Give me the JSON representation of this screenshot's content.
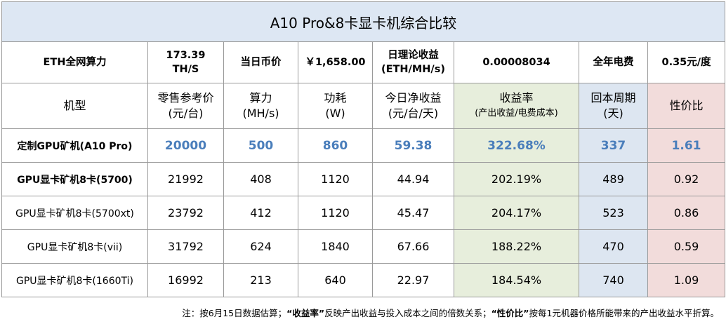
{
  "title": "A10 Pro&8卡显卡机综合比较",
  "stats": {
    "hashrate_label": "ETH全网算力",
    "hashrate_value": "173.39 TH/S",
    "price_label": "当日币价",
    "price_value": "￥1,658.00",
    "income_label": "日理论收益 (ETH/MH/s)",
    "income_value": "0.00008034",
    "electricity_label": "全年电费",
    "electricity_value": "0.35元/度"
  },
  "headers": {
    "model": "机型",
    "price": "零售参考价",
    "price_unit": "(元/台)",
    "hash": "算力",
    "hash_unit": "(MH/s)",
    "power": "功耗",
    "power_unit": "(W)",
    "net": "今日净收益",
    "net_unit": "(元/台/天)",
    "yield": "收益率",
    "yield_unit": "(产出收益/电费成本)",
    "payback": "回本周期",
    "payback_unit": "(天)",
    "value": "性价比"
  },
  "rows": [
    {
      "model": "定制GPU矿机(A10 Pro)",
      "price": "20000",
      "hash": "500",
      "power": "860",
      "net": "59.38",
      "yield": "322.68%",
      "payback": "337",
      "value": "1.61"
    },
    {
      "model": "GPU显卡矿机8卡(5700)",
      "price": "21992",
      "hash": "408",
      "power": "1120",
      "net": "44.94",
      "yield": "202.19%",
      "payback": "489",
      "value": "0.92"
    },
    {
      "model": "GPU显卡矿机8卡(5700xt)",
      "price": "23792",
      "hash": "412",
      "power": "1120",
      "net": "45.47",
      "yield": "204.17%",
      "payback": "523",
      "value": "0.86"
    },
    {
      "model": "GPU显卡矿机8卡(vii)",
      "price": "31792",
      "hash": "624",
      "power": "1840",
      "net": "67.66",
      "yield": "188.22%",
      "payback": "470",
      "value": "0.59"
    },
    {
      "model": "GPU显卡矿机8卡(1660Ti)",
      "price": "16992",
      "hash": "213",
      "power": "640",
      "net": "22.97",
      "yield": "184.54%",
      "payback": "740",
      "value": "1.09"
    }
  ],
  "note": {
    "part1": "注：按6月15日数据估算；",
    "term1": "“收益率”",
    "part2": "反映产出收益与投入成本之间的倍数关系；",
    "term2": "“性价比”",
    "part3": "按每1元机器价格所能带来的产出收益水平折算。"
  },
  "colors": {
    "title_bg": "#dde7f3",
    "yield_bg": "#e7eedc",
    "payback_bg": "#dde6f1",
    "value_bg": "#f2dcdb",
    "highlight_text": "#4a7ebb"
  }
}
